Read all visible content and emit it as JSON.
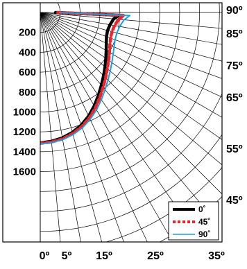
{
  "chart_data": {
    "type": "polar-half",
    "title": "",
    "radial_axis": {
      "max": 1800,
      "ticks": [
        200,
        400,
        600,
        800,
        1000,
        1200,
        1400,
        1600
      ],
      "tick_labels": [
        "200",
        "400",
        "600",
        "800",
        "1000",
        "1200",
        "1400",
        "1600"
      ]
    },
    "angle_axis": {
      "zero_direction": "down",
      "range_deg": [
        0,
        90
      ],
      "gridline_step_deg": 5,
      "right_labels": [
        "90º",
        "85º",
        "75º",
        "65º",
        "55º",
        "45º"
      ],
      "right_label_angles": [
        90,
        85,
        75,
        65,
        55,
        45
      ],
      "bottom_labels": [
        "0º",
        "5º",
        "15º",
        "25º",
        "35º"
      ],
      "bottom_label_angles": [
        0,
        5,
        15,
        25,
        35
      ]
    },
    "legend": {
      "placement": "bottom-right"
    },
    "series": [
      {
        "name": "0˚",
        "color": "#000000",
        "style": "solid-thick",
        "points": [
          [
            0,
            1310
          ],
          [
            5,
            1300
          ],
          [
            10,
            1280
          ],
          [
            15,
            1248
          ],
          [
            20,
            1205
          ],
          [
            25,
            1150
          ],
          [
            30,
            1085
          ],
          [
            35,
            1018
          ],
          [
            40,
            955
          ],
          [
            45,
            900
          ],
          [
            50,
            850
          ],
          [
            55,
            805
          ],
          [
            60,
            765
          ],
          [
            65,
            732
          ],
          [
            70,
            708
          ],
          [
            75,
            700
          ],
          [
            80,
            712
          ],
          [
            85,
            740
          ],
          [
            88,
            790
          ],
          [
            90,
            600
          ]
        ]
      },
      {
        "name": "45˚",
        "color": "#e8262d",
        "style": "dotted",
        "points": [
          [
            0,
            1315
          ],
          [
            5,
            1307
          ],
          [
            10,
            1290
          ],
          [
            15,
            1260
          ],
          [
            20,
            1220
          ],
          [
            25,
            1168
          ],
          [
            30,
            1107
          ],
          [
            35,
            1043
          ],
          [
            40,
            982
          ],
          [
            45,
            928
          ],
          [
            50,
            880
          ],
          [
            55,
            838
          ],
          [
            60,
            802
          ],
          [
            65,
            772
          ],
          [
            70,
            752
          ],
          [
            75,
            745
          ],
          [
            80,
            758
          ],
          [
            85,
            790
          ],
          [
            88,
            840
          ],
          [
            90,
            650
          ]
        ]
      },
      {
        "name": "90˚",
        "color": "#1aa0dc",
        "style": "thin",
        "points": [
          [
            0,
            1320
          ],
          [
            5,
            1313
          ],
          [
            10,
            1298
          ],
          [
            15,
            1272
          ],
          [
            20,
            1235
          ],
          [
            25,
            1186
          ],
          [
            30,
            1130
          ],
          [
            35,
            1070
          ],
          [
            40,
            1013
          ],
          [
            45,
            962
          ],
          [
            50,
            917
          ],
          [
            55,
            878
          ],
          [
            60,
            845
          ],
          [
            65,
            818
          ],
          [
            70,
            800
          ],
          [
            75,
            796
          ],
          [
            80,
            810
          ],
          [
            85,
            845
          ],
          [
            88,
            900
          ],
          [
            90,
            700
          ]
        ]
      }
    ]
  }
}
